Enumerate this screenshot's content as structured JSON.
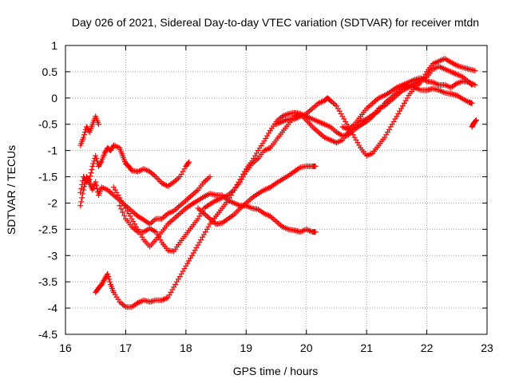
{
  "chart_data": {
    "type": "scatter",
    "title": "Day 026 of 2021, Sidereal Day-to-day VTEC variation (SDTVAR) for receiver mtdn",
    "xlabel": "GPS time / hours",
    "ylabel": "SDTVAR / TECUs",
    "xlim": [
      16,
      23
    ],
    "ylim": [
      -4.5,
      1
    ],
    "xticks": [
      16,
      17,
      18,
      19,
      20,
      21,
      22,
      23
    ],
    "yticks": [
      1,
      0.5,
      0,
      -0.5,
      -1,
      -1.5,
      -2,
      -2.5,
      -3,
      -3.5,
      -4,
      -4.5
    ],
    "ytick_labels": [
      "1",
      "0.5",
      "0",
      "-0.5",
      "-1",
      "-1.5",
      "-2",
      "-2.5",
      "-3",
      "-3.5",
      "-4",
      "-4.5"
    ],
    "grid": true,
    "marker": "+",
    "color": "#ff0000",
    "series": [
      {
        "name": "track-a",
        "points": [
          [
            16.25,
            -0.9
          ],
          [
            16.3,
            -0.75
          ],
          [
            16.35,
            -0.55
          ],
          [
            16.4,
            -0.65
          ],
          [
            16.45,
            -0.5
          ],
          [
            16.5,
            -0.35
          ],
          [
            16.55,
            -0.5
          ]
        ]
      },
      {
        "name": "track-b",
        "points": [
          [
            16.25,
            -1.8
          ],
          [
            16.3,
            -1.5
          ],
          [
            16.35,
            -1.6
          ],
          [
            16.4,
            -1.55
          ],
          [
            16.45,
            -1.3
          ],
          [
            16.5,
            -1.1
          ],
          [
            16.55,
            -1.3
          ],
          [
            16.6,
            -1.2
          ],
          [
            16.65,
            -1.05
          ],
          [
            16.7,
            -0.95
          ],
          [
            16.75,
            -1.0
          ],
          [
            16.8,
            -0.9
          ],
          [
            16.9,
            -0.95
          ],
          [
            16.95,
            -1.1
          ],
          [
            17.0,
            -1.25
          ],
          [
            17.05,
            -1.3
          ],
          [
            17.1,
            -1.38
          ],
          [
            17.2,
            -1.4
          ],
          [
            17.3,
            -1.35
          ],
          [
            17.4,
            -1.4
          ],
          [
            17.5,
            -1.5
          ],
          [
            17.6,
            -1.62
          ],
          [
            17.7,
            -1.68
          ],
          [
            17.8,
            -1.6
          ],
          [
            17.9,
            -1.5
          ],
          [
            18.0,
            -1.3
          ],
          [
            18.05,
            -1.22
          ]
        ]
      },
      {
        "name": "track-c",
        "points": [
          [
            16.25,
            -2.05
          ],
          [
            16.3,
            -1.75
          ],
          [
            16.35,
            -1.5
          ],
          [
            16.4,
            -1.62
          ],
          [
            16.45,
            -1.75
          ],
          [
            16.5,
            -1.6
          ],
          [
            16.55,
            -1.85
          ],
          [
            16.6,
            -1.7
          ],
          [
            16.7,
            -1.75
          ],
          [
            16.8,
            -1.85
          ],
          [
            16.9,
            -1.95
          ],
          [
            17.0,
            -2.05
          ],
          [
            17.1,
            -2.15
          ],
          [
            17.2,
            -2.25
          ],
          [
            17.3,
            -2.32
          ],
          [
            17.4,
            -2.4
          ],
          [
            17.5,
            -2.3
          ],
          [
            17.6,
            -2.3
          ],
          [
            17.7,
            -2.2
          ],
          [
            17.8,
            -2.15
          ],
          [
            17.9,
            -2.05
          ],
          [
            18.0,
            -1.95
          ],
          [
            18.1,
            -1.85
          ],
          [
            18.2,
            -1.75
          ],
          [
            18.3,
            -1.6
          ],
          [
            18.4,
            -1.5
          ]
        ]
      },
      {
        "name": "track-d",
        "points": [
          [
            16.8,
            -1.7
          ],
          [
            16.9,
            -1.9
          ],
          [
            17.0,
            -2.1
          ],
          [
            17.1,
            -2.3
          ],
          [
            17.2,
            -2.5
          ],
          [
            17.3,
            -2.7
          ],
          [
            17.4,
            -2.83
          ],
          [
            17.5,
            -2.7
          ],
          [
            17.6,
            -2.55
          ],
          [
            17.7,
            -2.4
          ],
          [
            17.8,
            -2.3
          ],
          [
            17.9,
            -2.2
          ],
          [
            18.0,
            -2.1
          ],
          [
            18.1,
            -2.02
          ],
          [
            18.2,
            -1.95
          ],
          [
            18.3,
            -1.88
          ],
          [
            18.4,
            -1.82
          ],
          [
            18.5,
            -1.85
          ],
          [
            18.6,
            -1.85
          ],
          [
            18.7,
            -1.95
          ],
          [
            18.8,
            -2.0
          ],
          [
            18.9,
            -2.05
          ],
          [
            19.0,
            -2.05
          ],
          [
            19.1,
            -2.1
          ],
          [
            19.2,
            -2.12
          ],
          [
            19.3,
            -2.2
          ],
          [
            19.4,
            -2.25
          ],
          [
            19.5,
            -2.35
          ],
          [
            19.6,
            -2.45
          ],
          [
            19.7,
            -2.5
          ],
          [
            19.8,
            -2.52
          ],
          [
            19.9,
            -2.55
          ],
          [
            20.0,
            -2.5
          ],
          [
            20.1,
            -2.55
          ],
          [
            20.15,
            -2.55
          ]
        ]
      },
      {
        "name": "track-e",
        "points": [
          [
            16.9,
            -2.05
          ],
          [
            17.0,
            -2.3
          ],
          [
            17.1,
            -2.45
          ],
          [
            17.2,
            -2.55
          ],
          [
            17.3,
            -2.55
          ],
          [
            17.4,
            -2.48
          ],
          [
            17.5,
            -2.55
          ],
          [
            17.6,
            -2.75
          ],
          [
            17.7,
            -2.9
          ],
          [
            17.8,
            -2.92
          ],
          [
            17.9,
            -2.75
          ],
          [
            18.0,
            -2.6
          ],
          [
            18.1,
            -2.45
          ],
          [
            18.2,
            -2.3
          ],
          [
            18.3,
            -2.1
          ],
          [
            18.4,
            -2.02
          ],
          [
            18.5,
            -1.95
          ],
          [
            18.6,
            -1.9
          ],
          [
            18.7,
            -1.85
          ],
          [
            18.8,
            -1.75
          ],
          [
            18.9,
            -1.6
          ],
          [
            19.0,
            -1.4
          ],
          [
            19.1,
            -1.25
          ],
          [
            19.2,
            -1.15
          ],
          [
            19.3,
            -1.0
          ],
          [
            19.4,
            -0.95
          ],
          [
            19.5,
            -0.8
          ],
          [
            19.6,
            -0.65
          ],
          [
            19.7,
            -0.5
          ],
          [
            19.8,
            -0.35
          ],
          [
            19.9,
            -0.3
          ],
          [
            20.0,
            -0.35
          ],
          [
            20.1,
            -0.4
          ],
          [
            20.2,
            -0.45
          ],
          [
            20.3,
            -0.5
          ],
          [
            20.4,
            -0.55
          ],
          [
            20.5,
            -0.65
          ],
          [
            20.6,
            -0.72
          ],
          [
            20.7,
            -0.7
          ],
          [
            20.8,
            -0.6
          ],
          [
            20.9,
            -0.52
          ],
          [
            21.0,
            -0.45
          ],
          [
            21.1,
            -0.35
          ],
          [
            21.2,
            -0.2
          ],
          [
            21.3,
            -0.15
          ],
          [
            21.4,
            -0.05
          ],
          [
            21.5,
            0.05
          ],
          [
            21.6,
            0.15
          ],
          [
            21.7,
            0.2
          ],
          [
            21.8,
            0.28
          ],
          [
            21.9,
            0.35
          ],
          [
            22.0,
            0.4
          ],
          [
            22.1,
            0.55
          ],
          [
            22.2,
            0.6
          ],
          [
            22.3,
            0.55
          ],
          [
            22.4,
            0.5
          ],
          [
            22.5,
            0.45
          ],
          [
            22.6,
            0.4
          ],
          [
            22.7,
            0.3
          ],
          [
            22.75,
            0.25
          ]
        ]
      },
      {
        "name": "track-f",
        "points": [
          [
            16.5,
            -3.7
          ],
          [
            16.55,
            -3.62
          ],
          [
            16.6,
            -3.55
          ],
          [
            16.65,
            -3.45
          ],
          [
            16.7,
            -3.35
          ],
          [
            16.75,
            -3.55
          ],
          [
            16.8,
            -3.7
          ],
          [
            16.9,
            -3.88
          ],
          [
            17.0,
            -3.98
          ],
          [
            17.1,
            -3.98
          ],
          [
            17.2,
            -3.9
          ],
          [
            17.3,
            -3.85
          ],
          [
            17.4,
            -3.88
          ],
          [
            17.5,
            -3.85
          ],
          [
            17.6,
            -3.85
          ],
          [
            17.7,
            -3.8
          ],
          [
            17.8,
            -3.6
          ],
          [
            17.9,
            -3.4
          ],
          [
            18.0,
            -3.2
          ],
          [
            18.1,
            -3.0
          ],
          [
            18.2,
            -2.8
          ],
          [
            18.3,
            -2.6
          ],
          [
            18.4,
            -2.4
          ],
          [
            18.5,
            -2.25
          ],
          [
            18.6,
            -2.1
          ],
          [
            18.7,
            -1.95
          ],
          [
            18.8,
            -1.75
          ],
          [
            18.9,
            -1.55
          ],
          [
            19.0,
            -1.35
          ],
          [
            19.1,
            -1.2
          ],
          [
            19.2,
            -1.0
          ],
          [
            19.3,
            -0.82
          ],
          [
            19.4,
            -0.62
          ],
          [
            19.5,
            -0.45
          ],
          [
            19.6,
            -0.35
          ],
          [
            19.7,
            -0.3
          ],
          [
            19.8,
            -0.28
          ],
          [
            19.9,
            -0.3
          ],
          [
            20.0,
            -0.42
          ],
          [
            20.1,
            -0.55
          ],
          [
            20.2,
            -0.65
          ],
          [
            20.3,
            -0.75
          ],
          [
            20.4,
            -0.8
          ],
          [
            20.5,
            -0.85
          ],
          [
            20.6,
            -0.8
          ],
          [
            20.7,
            -0.65
          ],
          [
            20.8,
            -0.55
          ],
          [
            20.9,
            -0.45
          ],
          [
            21.0,
            -0.4
          ],
          [
            21.1,
            -0.32
          ],
          [
            21.2,
            -0.25
          ],
          [
            21.3,
            -0.1
          ],
          [
            21.4,
            0.0
          ],
          [
            21.5,
            0.1
          ],
          [
            21.6,
            0.2
          ],
          [
            21.7,
            0.25
          ],
          [
            21.8,
            0.2
          ],
          [
            21.9,
            0.15
          ],
          [
            22.0,
            0.15
          ],
          [
            22.1,
            0.18
          ],
          [
            22.2,
            0.15
          ],
          [
            22.3,
            0.1
          ],
          [
            22.4,
            0.08
          ],
          [
            22.5,
            0.05
          ],
          [
            22.6,
            -0.02
          ],
          [
            22.7,
            -0.08
          ],
          [
            22.75,
            -0.1
          ]
        ]
      },
      {
        "name": "track-g",
        "points": [
          [
            18.2,
            -2.1
          ],
          [
            18.3,
            -2.2
          ],
          [
            18.4,
            -2.3
          ],
          [
            18.5,
            -2.4
          ],
          [
            18.6,
            -2.38
          ],
          [
            18.7,
            -2.3
          ],
          [
            18.8,
            -2.22
          ],
          [
            18.9,
            -2.1
          ],
          [
            19.0,
            -2.0
          ],
          [
            19.1,
            -1.9
          ],
          [
            19.2,
            -1.82
          ],
          [
            19.3,
            -1.75
          ],
          [
            19.4,
            -1.7
          ],
          [
            19.5,
            -1.62
          ],
          [
            19.6,
            -1.55
          ],
          [
            19.7,
            -1.48
          ],
          [
            19.8,
            -1.4
          ],
          [
            19.9,
            -1.32
          ],
          [
            20.0,
            -1.3
          ],
          [
            20.1,
            -1.3
          ],
          [
            20.15,
            -1.3
          ]
        ]
      },
      {
        "name": "track-h",
        "points": [
          [
            19.5,
            -0.5
          ],
          [
            19.6,
            -0.45
          ],
          [
            19.7,
            -0.4
          ],
          [
            19.8,
            -0.4
          ],
          [
            19.9,
            -0.35
          ],
          [
            20.0,
            -0.3
          ],
          [
            20.1,
            -0.2
          ],
          [
            20.2,
            -0.1
          ],
          [
            20.3,
            -0.05
          ],
          [
            20.35,
            0.0
          ],
          [
            20.4,
            -0.05
          ],
          [
            20.5,
            -0.15
          ],
          [
            20.6,
            -0.35
          ],
          [
            20.7,
            -0.55
          ],
          [
            20.8,
            -0.75
          ],
          [
            20.9,
            -0.95
          ],
          [
            21.0,
            -1.1
          ],
          [
            21.1,
            -1.05
          ],
          [
            21.2,
            -0.9
          ],
          [
            21.3,
            -0.75
          ],
          [
            21.4,
            -0.55
          ],
          [
            21.5,
            -0.35
          ],
          [
            21.6,
            -0.15
          ],
          [
            21.7,
            0.05
          ],
          [
            21.8,
            0.2
          ],
          [
            21.9,
            0.3
          ],
          [
            22.0,
            0.5
          ],
          [
            22.1,
            0.65
          ],
          [
            22.2,
            0.7
          ],
          [
            22.3,
            0.75
          ],
          [
            22.4,
            0.68
          ],
          [
            22.5,
            0.62
          ],
          [
            22.6,
            0.58
          ],
          [
            22.7,
            0.55
          ],
          [
            22.8,
            0.52
          ]
        ]
      },
      {
        "name": "track-i",
        "points": [
          [
            20.6,
            -0.55
          ],
          [
            20.7,
            -0.6
          ],
          [
            20.8,
            -0.5
          ],
          [
            20.9,
            -0.35
          ],
          [
            21.0,
            -0.2
          ],
          [
            21.1,
            -0.1
          ],
          [
            21.2,
            0.0
          ],
          [
            21.3,
            0.05
          ],
          [
            21.4,
            0.12
          ],
          [
            21.5,
            0.2
          ],
          [
            21.6,
            0.25
          ],
          [
            21.7,
            0.3
          ],
          [
            21.8,
            0.35
          ],
          [
            21.9,
            0.38
          ],
          [
            22.0,
            0.32
          ],
          [
            22.1,
            0.3
          ],
          [
            22.2,
            0.25
          ],
          [
            22.3,
            0.25
          ],
          [
            22.4,
            0.2
          ],
          [
            22.5,
            0.28
          ],
          [
            22.6,
            0.32
          ],
          [
            22.7,
            0.3
          ],
          [
            22.8,
            0.25
          ]
        ]
      },
      {
        "name": "track-j",
        "points": [
          [
            22.75,
            -0.55
          ],
          [
            22.78,
            -0.48
          ],
          [
            22.82,
            -0.42
          ]
        ]
      }
    ]
  }
}
